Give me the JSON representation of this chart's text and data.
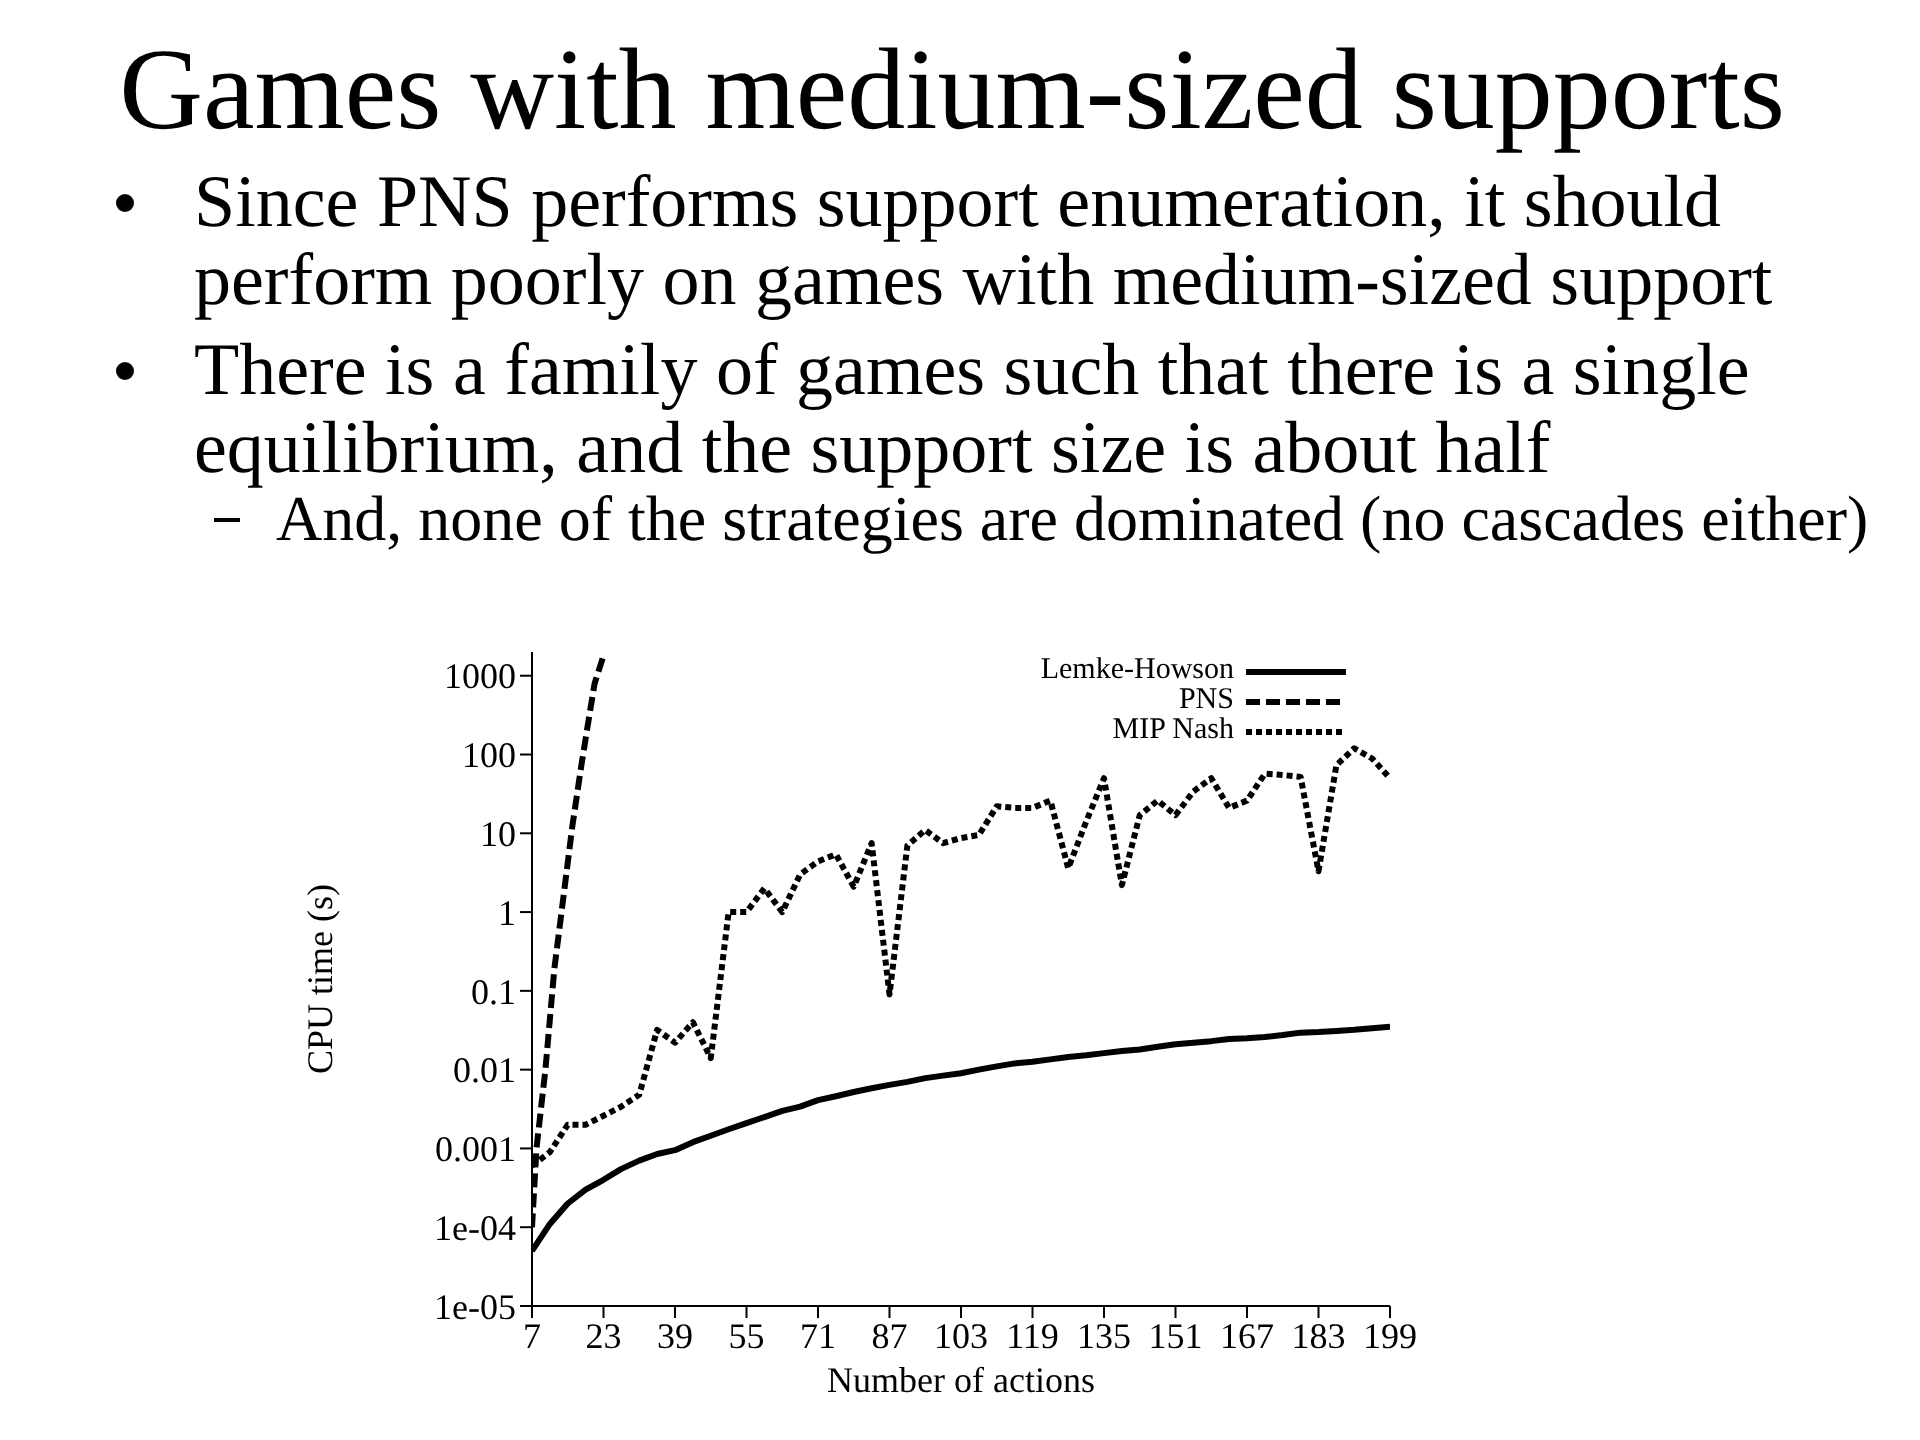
{
  "chart_data": {
    "type": "line",
    "title": "Games with medium-sized supports",
    "annotations": [
      "Since PNS performs support enumeration, it should perform poorly on games with medium-sized support",
      "There is a family of games such that there is a single equilibrium, and the support size is about half",
      "And, none of the strategies are dominated (no cascades either)"
    ],
    "xlabel": "Number of actions",
    "ylabel": "CPU time (s)",
    "xlim": [
      7,
      199
    ],
    "xticks": [
      7,
      23,
      39,
      55,
      71,
      87,
      103,
      119,
      135,
      151,
      167,
      183,
      199
    ],
    "ylim": [
      1e-05,
      2000
    ],
    "yticks": [
      {
        "value": 1e-05,
        "label": "1e-05"
      },
      {
        "value": 0.0001,
        "label": "1e-04"
      },
      0.001,
      0.01,
      0.1,
      1,
      10,
      100,
      1000
    ],
    "log": "y",
    "legend": "top right",
    "x": [
      7,
      11,
      15,
      19,
      23,
      27,
      31,
      35,
      39,
      43,
      47,
      51,
      55,
      59,
      63,
      67,
      71,
      75,
      79,
      83,
      87,
      91,
      95,
      99,
      103,
      107,
      111,
      115,
      119,
      123,
      127,
      131,
      135,
      139,
      143,
      147,
      151,
      155,
      159,
      163,
      167,
      171,
      175,
      179,
      183,
      187,
      191,
      195,
      199
    ],
    "series": [
      {
        "name": "Lemke-Howson",
        "color": "#000000",
        "line_style": "solid",
        "values": [
          5e-05,
          0.00011,
          0.0002,
          0.0003,
          0.0004,
          0.00055,
          0.0007,
          0.00085,
          0.00095,
          0.0012,
          0.00145,
          0.00175,
          0.0021,
          0.0025,
          0.003,
          0.0034,
          0.0041,
          0.0046,
          0.0052,
          0.0058,
          0.0064,
          0.007,
          0.0078,
          0.0084,
          0.009,
          0.01,
          0.011,
          0.012,
          0.0126,
          0.0135,
          0.0145,
          0.0152,
          0.0162,
          0.0172,
          0.018,
          0.0195,
          0.021,
          0.022,
          0.023,
          0.0245,
          0.025,
          0.026,
          0.0275,
          0.0295,
          0.03,
          0.031,
          0.032,
          0.0335,
          0.035
        ]
      },
      {
        "name": "PNS",
        "color": "#000000",
        "line_style": "dashed",
        "x": [
          7,
          8,
          10,
          12,
          14,
          16,
          18,
          20,
          21,
          23
        ],
        "values": [
          0.0001,
          0.001,
          0.01,
          0.19,
          1.5,
          12,
          70,
          360,
          790,
          1800
        ]
      },
      {
        "name": "MIP Nash",
        "color": "#000000",
        "line_style": "dotted",
        "values": [
          0.0006,
          0.0009,
          0.002,
          0.002,
          0.0026,
          0.0034,
          0.0048,
          0.032,
          0.022,
          0.04,
          0.014,
          1,
          1,
          2,
          1,
          3,
          4.4,
          5.4,
          2.1,
          7.5,
          0.09,
          7,
          11,
          7.5,
          8.7,
          9.5,
          22,
          21,
          21,
          26,
          3.6,
          14,
          50,
          2.2,
          17,
          26,
          17,
          34,
          50,
          21,
          26,
          57,
          55,
          52,
          3.3,
          73,
          120,
          89,
          50
        ]
      }
    ]
  }
}
